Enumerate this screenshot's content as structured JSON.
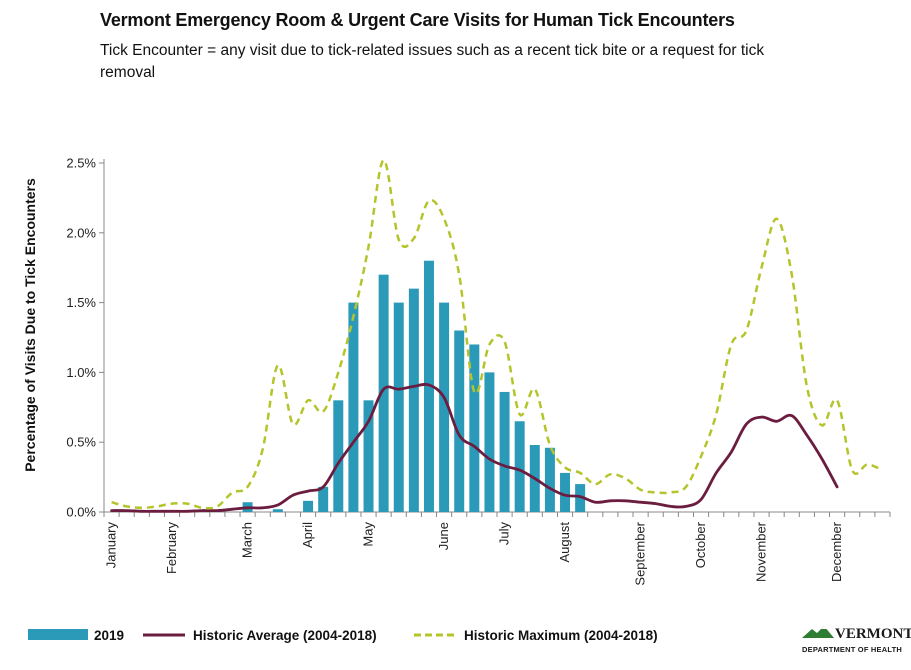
{
  "chart_data": {
    "type": "bar+line",
    "title": "Vermont Emergency Room & Urgent Care Visits for Human Tick Encounters",
    "subtitle": "Tick Encounter = any visit due to tick-related issues such as a recent tick bite or a request for tick removal",
    "ylabel": "Percentage of Visits Due to Tick Encounters",
    "xlabel": "",
    "ylim": [
      0,
      2.5
    ],
    "weeks": 52,
    "y_ticks": [
      "0.0%",
      "0.5%",
      "1.0%",
      "1.5%",
      "2.0%",
      "2.5%"
    ],
    "months": [
      "January",
      "February",
      "March",
      "April",
      "May",
      "June",
      "July",
      "August",
      "September",
      "October",
      "November",
      "December"
    ],
    "series": [
      {
        "name": "2019",
        "kind": "bar",
        "color": "#2a9ab8",
        "values": [
          0,
          0,
          0,
          0,
          0,
          0,
          0,
          0,
          0,
          0.07,
          0,
          0.02,
          0,
          0.08,
          0.18,
          0.8,
          1.5,
          0.8,
          1.7,
          1.5,
          1.6,
          1.8,
          1.5,
          1.3,
          1.2,
          1.0,
          0.86,
          0.65,
          0.48,
          0.46,
          0.28,
          0.2,
          0,
          0,
          0,
          0,
          0,
          0,
          0,
          0,
          0,
          0,
          0,
          0,
          0,
          0,
          0,
          0,
          0,
          0,
          0,
          0
        ]
      },
      {
        "name": "Historic Average (2004-2018)",
        "kind": "line",
        "color": "#6b1d3f",
        "values": [
          0.01,
          0.01,
          0.005,
          0.005,
          0.005,
          0.005,
          0.01,
          0.01,
          0.02,
          0.03,
          0.03,
          0.05,
          0.12,
          0.15,
          0.18,
          0.35,
          0.5,
          0.65,
          0.88,
          0.88,
          0.9,
          0.91,
          0.82,
          0.55,
          0.47,
          0.38,
          0.33,
          0.3,
          0.24,
          0.17,
          0.12,
          0.11,
          0.07,
          0.08,
          0.08,
          0.07,
          0.06,
          0.04,
          0.04,
          0.09,
          0.28,
          0.43,
          0.63,
          0.68,
          0.65,
          0.69,
          0.55,
          0.38,
          0.18,
          null,
          null,
          null
        ]
      },
      {
        "name": "Historic Maximum (2004-2018)",
        "kind": "line",
        "dashed": true,
        "color": "#b5c42a",
        "values": [
          0.07,
          0.04,
          0.03,
          0.04,
          0.06,
          0.06,
          0.03,
          0.04,
          0.14,
          0.18,
          0.45,
          1.05,
          0.63,
          0.8,
          0.72,
          1.0,
          1.4,
          1.9,
          2.52,
          1.95,
          1.96,
          2.23,
          2.1,
          1.7,
          0.86,
          1.2,
          1.22,
          0.7,
          0.88,
          0.48,
          0.32,
          0.28,
          0.2,
          0.27,
          0.24,
          0.16,
          0.14,
          0.14,
          0.18,
          0.4,
          0.7,
          1.2,
          1.3,
          1.75,
          2.1,
          1.7,
          0.9,
          0.62,
          0.8,
          0.3,
          0.34,
          0.3
        ]
      }
    ],
    "legend": [
      {
        "label": "2019",
        "kind": "bar",
        "color": "#2a9ab8"
      },
      {
        "label": "Historic Average (2004-2018)",
        "kind": "line",
        "color": "#6b1d3f"
      },
      {
        "label": "Historic Maximum (2004-2018)",
        "kind": "dashed",
        "color": "#b5c42a"
      }
    ],
    "legend_position": "bottom",
    "grid": false
  },
  "logo": {
    "top_text": "VERMONT",
    "bottom_text": "DEPARTMENT OF HEALTH",
    "color": "#2e7d32"
  }
}
